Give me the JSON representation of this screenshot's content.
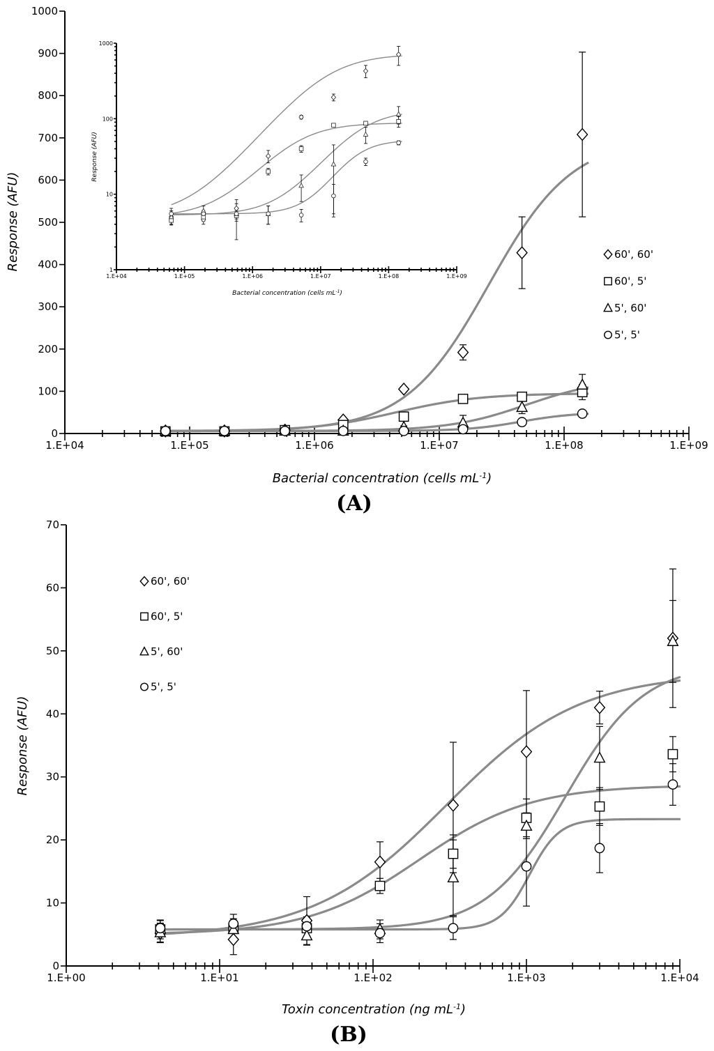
{
  "chart_data": [
    {
      "id": "A",
      "type": "scatter",
      "panel_label": "(A)",
      "xlabel": "Bacterial concentration (cells mL",
      "xlabel_sup": "-1",
      "xlabel_close": ")",
      "ylabel": "Response (AFU)",
      "xscale": "log",
      "xlim": [
        10000,
        1000000000
      ],
      "ylim": [
        0,
        1000
      ],
      "x_ticks": [
        "1.E+04",
        "1.E+05",
        "1.E+06",
        "1.E+07",
        "1.E+08",
        "1.E+09"
      ],
      "y_ticks": [
        "0",
        "100",
        "200",
        "300",
        "400",
        "500",
        "600",
        "700",
        "800",
        "900",
        "1000"
      ],
      "legend_position": "right",
      "x": [
        64000,
        190000,
        580000,
        1700000,
        5200000,
        15500000,
        46000000,
        140000000
      ],
      "series": [
        {
          "name": "60', 60'",
          "marker": "diamond",
          "values": [
            6,
            6,
            8,
            32,
            105,
            192,
            428,
            708
          ],
          "errors": [
            2,
            2,
            2,
            4,
            6,
            18,
            85,
            195
          ],
          "fit": {
            "bottom": 6,
            "top": 700,
            "ec50": 25000000,
            "hill": 1.3
          }
        },
        {
          "name": "60', 5'",
          "marker": "square",
          "values": [
            5,
            5,
            8,
            20,
            40,
            82,
            87,
            98
          ],
          "errors": [
            1,
            1,
            2,
            3,
            4,
            4,
            5,
            18
          ],
          "fit": {
            "bottom": 5,
            "top": 95,
            "ec50": 4500000,
            "hill": 1.3
          }
        },
        {
          "name": "5', 60'",
          "marker": "triangle",
          "values": [
            6,
            6,
            6,
            6,
            15,
            25,
            62,
            115
          ],
          "errors": [
            1,
            1,
            2,
            2,
            3,
            18,
            15,
            25
          ],
          "fit": {
            "bottom": 6,
            "top": 130,
            "ec50": 50000000,
            "hill": 1.4
          }
        },
        {
          "name": "5', 5'",
          "marker": "circle",
          "values": [
            6,
            6,
            6,
            6,
            6,
            10,
            27,
            47
          ],
          "errors": [
            1,
            1,
            1,
            1,
            1,
            3,
            3,
            3
          ],
          "fit": {
            "bottom": 6,
            "top": 50,
            "ec50": 45000000,
            "hill": 2.0
          }
        }
      ]
    },
    {
      "id": "A-inset",
      "type": "scatter",
      "xlabel": "Bacterial concentration (cells mL",
      "xlabel_sup": "-1",
      "xlabel_close": ")",
      "ylabel": "Response (AFU)",
      "xscale": "log",
      "yscale": "log",
      "xlim": [
        10000,
        1000000000
      ],
      "ylim": [
        1,
        1000
      ],
      "x_ticks": [
        "1.E+04",
        "1.E+05",
        "1.E+06",
        "1.E+07",
        "1.E+08",
        "1.E+09"
      ],
      "y_ticks": [
        "1",
        "10",
        "100",
        "1000"
      ],
      "x": [
        64000,
        190000,
        580000,
        1700000,
        5200000,
        15500000,
        46000000,
        140000000
      ],
      "series": [
        {
          "name": "60', 60'",
          "marker": "diamond",
          "values": [
            5.0,
            4.6,
            6.5,
            32,
            105,
            192,
            428,
            708
          ],
          "errors": [
            1,
            0.6,
            1,
            6,
            6,
            20,
            80,
            200
          ],
          "fit": {
            "bottom": 5,
            "top": 720,
            "ec50": 12000000,
            "hill": 1.1
          }
        },
        {
          "name": "60', 5'",
          "marker": "square",
          "values": [
            4.5,
            5.0,
            5.2,
            20,
            40,
            82,
            87,
            92
          ],
          "errors": [
            0.6,
            0.6,
            0.8,
            2,
            4,
            4,
            5,
            15
          ],
          "fit": {
            "bottom": 5,
            "top": 88,
            "ec50": 4000000,
            "hill": 1.2
          }
        },
        {
          "name": "5', 60'",
          "marker": "triangle",
          "values": [
            5,
            6,
            5.5,
            5.5,
            13,
            25,
            62,
            115
          ],
          "errors": [
            1,
            1,
            3,
            1.5,
            5,
            20,
            15,
            30
          ],
          "fit": {
            "bottom": 5.3,
            "top": 130,
            "ec50": 35000000,
            "hill": 1.3
          }
        },
        {
          "name": "5', 5'",
          "marker": "circle",
          "values": [
            5.5,
            5.5,
            5.5,
            5.5,
            5.3,
            9.5,
            27,
            48
          ],
          "errors": [
            1,
            0.6,
            0.8,
            1.5,
            1,
            4,
            3,
            3
          ],
          "fit": {
            "bottom": 5.5,
            "top": 52,
            "ec50": 28000000,
            "hill": 1.8
          }
        }
      ]
    },
    {
      "id": "B",
      "type": "scatter",
      "panel_label": "(B)",
      "xlabel": "Toxin concentration (ng mL",
      "xlabel_sup": "-1",
      "xlabel_close": ")",
      "ylabel": "Response (AFU)",
      "xscale": "log",
      "xlim": [
        1,
        10000
      ],
      "ylim": [
        0,
        70
      ],
      "x_ticks": [
        "1.E+00",
        "1.E+01",
        "1.E+02",
        "1.E+03",
        "1.E+04"
      ],
      "y_ticks": [
        "0",
        "10",
        "20",
        "30",
        "40",
        "50",
        "60",
        "70"
      ],
      "legend_position": "top-left",
      "x": [
        4.1,
        12.3,
        37,
        111,
        333,
        1000,
        3000,
        9000
      ],
      "series": [
        {
          "name": "60', 60'",
          "marker": "diamond",
          "values": [
            5.2,
            4.2,
            7.2,
            16.5,
            25.5,
            34,
            41,
            52
          ],
          "errors": [
            1.5,
            2.4,
            3.8,
            3.2,
            10,
            9.7,
            2.6,
            11
          ],
          "fit": {
            "bottom": 4.5,
            "top": 46.5,
            "ec50": 300,
            "hill": 1.0
          }
        },
        {
          "name": "60', 5'",
          "marker": "square",
          "values": [
            5.8,
            6.0,
            6.0,
            12.7,
            17.8,
            23.5,
            25.3,
            33.6
          ],
          "errors": [
            1.5,
            1.5,
            1.5,
            1.2,
            3,
            3,
            3,
            2.8
          ],
          "fit": {
            "bottom": 5,
            "top": 28.7,
            "ec50": 200,
            "hill": 1.2
          }
        },
        {
          "name": "5', 60'",
          "marker": "triangle",
          "values": [
            5.3,
            5.8,
            4.8,
            5.8,
            14,
            22.2,
            33,
            51.5
          ],
          "errors": [
            1.5,
            1.5,
            1.5,
            1.5,
            6,
            2,
            5,
            6.5
          ],
          "fit": {
            "bottom": 5.8,
            "top": 48,
            "ec50": 1800,
            "hill": 1.7
          }
        },
        {
          "name": "5', 5'",
          "marker": "circle",
          "values": [
            6.0,
            6.7,
            6.3,
            5.2,
            6.0,
            15.8,
            18.7,
            28.8
          ],
          "errors": [
            1.2,
            1.5,
            1.5,
            1.5,
            1.8,
            6.3,
            3.9,
            3.3
          ],
          "fit": {
            "bottom": 5.8,
            "top": 23.3,
            "ec50": 1050,
            "hill": 4.5
          }
        }
      ]
    }
  ]
}
